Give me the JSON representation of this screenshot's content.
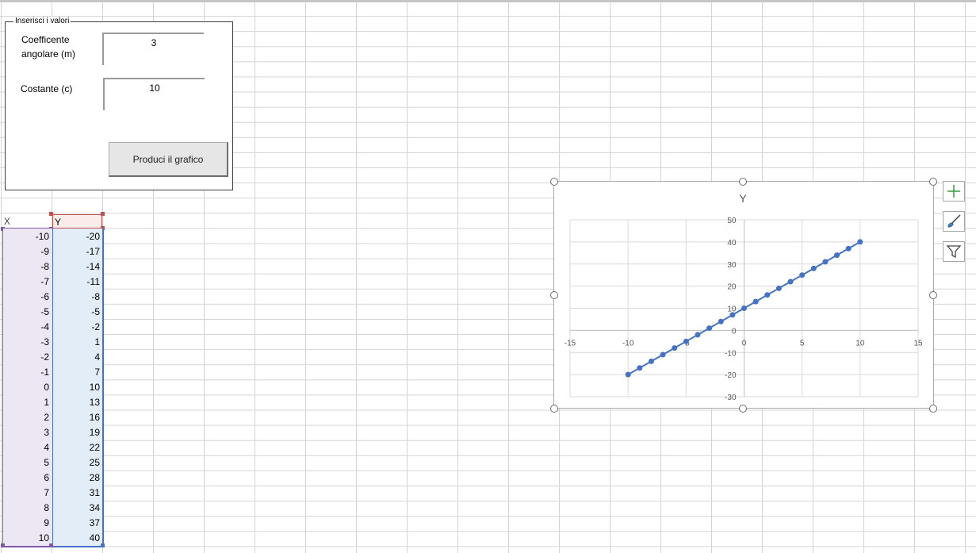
{
  "form": {
    "title": "Inserisci i valori",
    "m_label_line1": "Coefficente",
    "m_label_line2": "angolare (m)",
    "m_value": "3",
    "c_label": "Costante (c)",
    "c_value": "10",
    "button_label": "Produci il grafico"
  },
  "sheet": {
    "header_x": "X",
    "header_y": "Y",
    "rows": [
      {
        "x": "-10",
        "y": "-20"
      },
      {
        "x": "-9",
        "y": "-17"
      },
      {
        "x": "-8",
        "y": "-14"
      },
      {
        "x": "-7",
        "y": "-11"
      },
      {
        "x": "-6",
        "y": "-8"
      },
      {
        "x": "-5",
        "y": "-5"
      },
      {
        "x": "-4",
        "y": "-2"
      },
      {
        "x": "-3",
        "y": "1"
      },
      {
        "x": "-2",
        "y": "4"
      },
      {
        "x": "-1",
        "y": "7"
      },
      {
        "x": "0",
        "y": "10"
      },
      {
        "x": "1",
        "y": "13"
      },
      {
        "x": "2",
        "y": "16"
      },
      {
        "x": "3",
        "y": "19"
      },
      {
        "x": "4",
        "y": "22"
      },
      {
        "x": "5",
        "y": "25"
      },
      {
        "x": "6",
        "y": "28"
      },
      {
        "x": "7",
        "y": "31"
      },
      {
        "x": "8",
        "y": "34"
      },
      {
        "x": "9",
        "y": "37"
      },
      {
        "x": "10",
        "y": "40"
      }
    ]
  },
  "chart_data": {
    "type": "scatter",
    "title": "Y",
    "xlim": [
      -15,
      15
    ],
    "ylim": [
      -30,
      50
    ],
    "x_ticks": [
      -15,
      -10,
      -5,
      0,
      5,
      10,
      15
    ],
    "y_ticks": [
      -30,
      -20,
      -10,
      0,
      10,
      20,
      30,
      40,
      50
    ],
    "grid": true,
    "series": [
      {
        "name": "Y",
        "color": "#4472c4",
        "x": [
          -10,
          -9,
          -8,
          -7,
          -6,
          -5,
          -4,
          -3,
          -2,
          -1,
          0,
          1,
          2,
          3,
          4,
          5,
          6,
          7,
          8,
          9,
          10
        ],
        "y": [
          -20,
          -17,
          -14,
          -11,
          -8,
          -5,
          -2,
          1,
          4,
          7,
          10,
          13,
          16,
          19,
          22,
          25,
          28,
          31,
          34,
          37,
          40
        ]
      }
    ]
  },
  "icons": {
    "chart_elements": "plus-icon",
    "chart_styles": "brush-icon",
    "chart_filters": "filter-icon"
  }
}
